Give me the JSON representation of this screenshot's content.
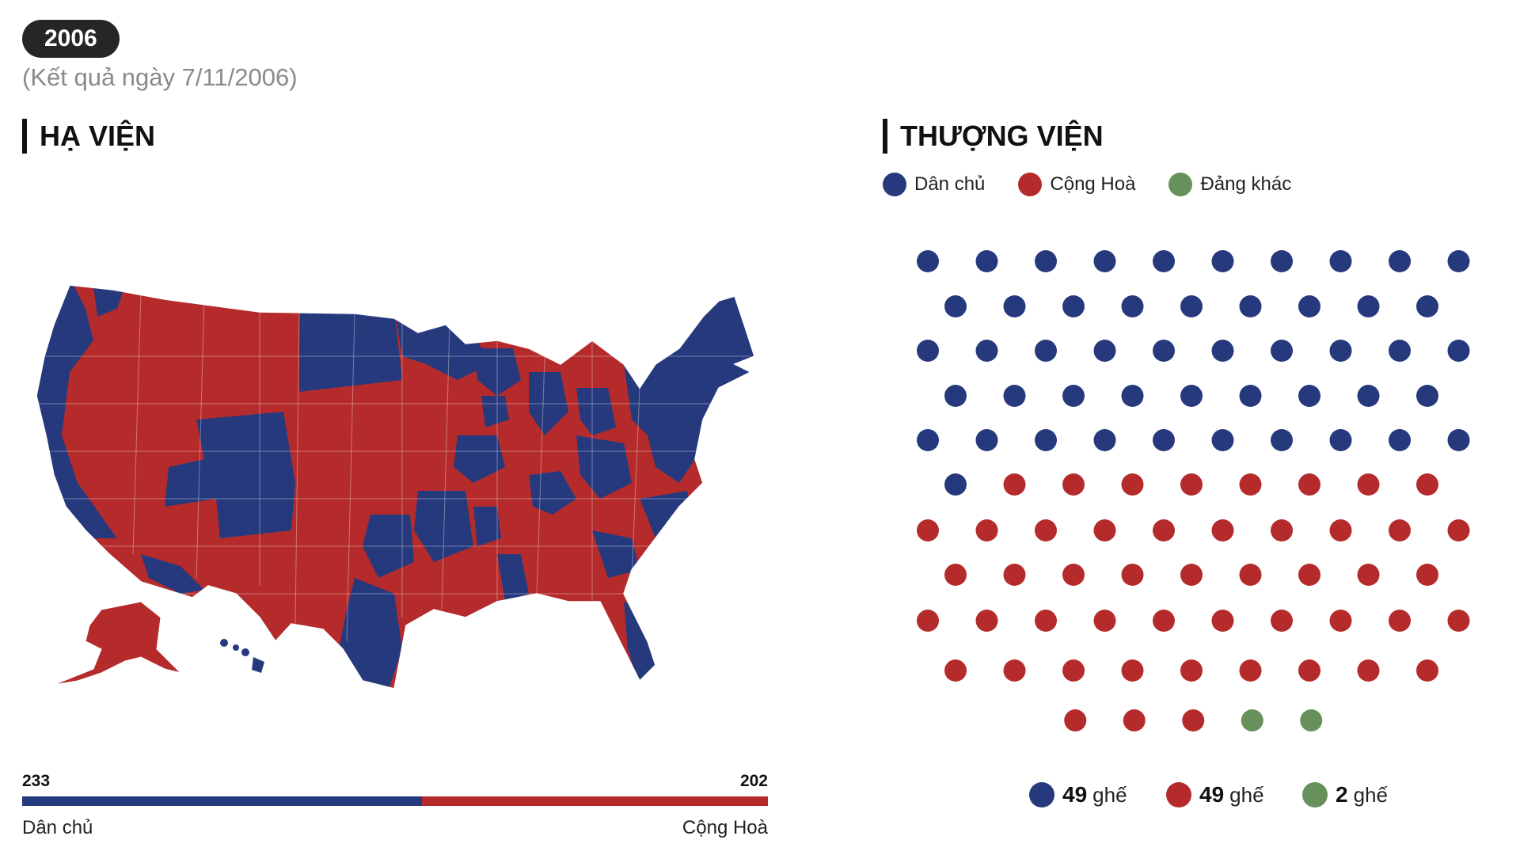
{
  "header": {
    "year": "2006",
    "result_date": "(Kết quả ngày 7/11/2006)"
  },
  "colors": {
    "democrat": "#27397d",
    "republican": "#b52b2b",
    "other": "#67905a"
  },
  "house": {
    "title": "HẠ VIỆN",
    "democrat_label": "Dân chủ",
    "republican_label": "Cộng Hoà"
  },
  "senate": {
    "title": "THƯỢNG VIỆN",
    "legend": {
      "democrat": "Dân chủ",
      "republican": "Cộng Hoà",
      "other": "Đảng khác"
    },
    "seat_unit": "ghế"
  },
  "chart_data": [
    {
      "type": "bar",
      "name": "house",
      "categories": [
        "Dân chủ",
        "Cộng Hoà"
      ],
      "values": [
        233,
        202
      ],
      "value_labels": [
        "233",
        "202"
      ],
      "orientation": "horizontal-stacked"
    },
    {
      "type": "dot-grid",
      "name": "senate",
      "categories": [
        "Dân chủ",
        "Cộng Hoà",
        "Đảng khác"
      ],
      "values": [
        49,
        49,
        2
      ],
      "value_labels": [
        "49",
        "49",
        "2"
      ]
    }
  ]
}
